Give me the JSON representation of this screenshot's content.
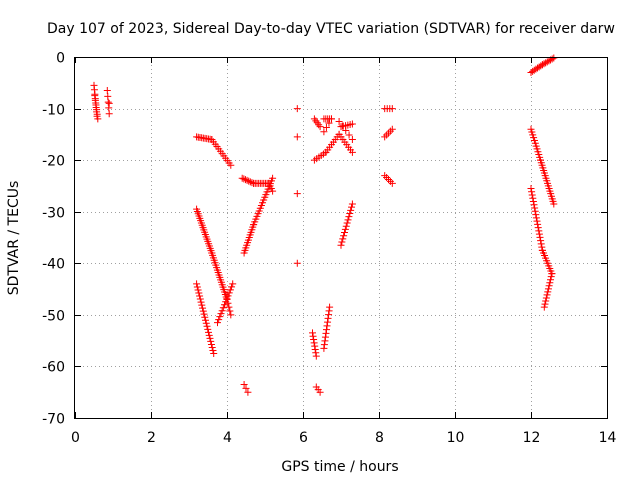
{
  "chart_data": {
    "type": "scatter",
    "title": "Day 107 of 2023, Sidereal Day-to-day VTEC variation (SDTVAR) for receiver darw",
    "xlabel": "GPS time / hours",
    "ylabel": "SDTVAR / TECUs",
    "xlim": [
      0,
      14
    ],
    "ylim": [
      -70,
      0
    ],
    "xticks": [
      0,
      2,
      4,
      6,
      8,
      10,
      12,
      14
    ],
    "yticks": [
      0,
      -10,
      -20,
      -30,
      -40,
      -50,
      -60,
      -70
    ],
    "grid": true,
    "marker": "+",
    "color": "#ff0000",
    "series": [
      {
        "name": "SDTVAR",
        "segments": [
          {
            "from": [
              0.5,
              -5.5
            ],
            "to": [
              0.58,
              -11.5
            ],
            "n": 8
          },
          {
            "from": [
              0.52,
              -7.5
            ],
            "to": [
              0.6,
              -12.0
            ],
            "n": 6
          },
          {
            "from": [
              0.85,
              -6.5
            ],
            "to": [
              0.9,
              -11.0
            ],
            "n": 5
          },
          {
            "from": [
              3.2,
              -15.5
            ],
            "to": [
              3.6,
              -16.0
            ],
            "n": 10
          },
          {
            "from": [
              3.6,
              -16.0
            ],
            "to": [
              4.1,
              -21.0
            ],
            "n": 12
          },
          {
            "from": [
              3.2,
              -29.5
            ],
            "to": [
              3.6,
              -38.0
            ],
            "n": 20
          },
          {
            "from": [
              3.6,
              -38.0
            ],
            "to": [
              4.0,
              -47.0
            ],
            "n": 20
          },
          {
            "from": [
              4.0,
              -47.0
            ],
            "to": [
              4.1,
              -50.0
            ],
            "n": 5
          },
          {
            "from": [
              3.2,
              -44.0
            ],
            "to": [
              3.65,
              -57.5
            ],
            "n": 24
          },
          {
            "from": [
              3.75,
              -51.5
            ],
            "to": [
              4.15,
              -44.0
            ],
            "n": 14
          },
          {
            "from": [
              4.4,
              -23.5
            ],
            "to": [
              4.7,
              -24.5
            ],
            "n": 8
          },
          {
            "from": [
              4.7,
              -24.5
            ],
            "to": [
              5.1,
              -24.5
            ],
            "n": 10
          },
          {
            "from": [
              5.1,
              -24.5
            ],
            "to": [
              5.2,
              -26.0
            ],
            "n": 4
          },
          {
            "from": [
              4.45,
              -38.0
            ],
            "to": [
              4.7,
              -32.5
            ],
            "n": 12
          },
          {
            "from": [
              4.7,
              -32.5
            ],
            "to": [
              5.2,
              -23.5
            ],
            "n": 18
          },
          {
            "from": [
              4.45,
              -63.5
            ],
            "to": [
              4.55,
              -65.0
            ],
            "n": 3
          },
          {
            "from": [
              6.3,
              -12.0
            ],
            "to": [
              6.45,
              -13.5
            ],
            "n": 5
          },
          {
            "from": [
              6.55,
              -12.0
            ],
            "to": [
              6.75,
              -12.0
            ],
            "n": 5
          },
          {
            "from": [
              6.75,
              -12.0
            ],
            "to": [
              6.55,
              -14.5
            ],
            "n": 4
          },
          {
            "from": [
              6.95,
              -12.5
            ],
            "to": [
              7.3,
              -16.0
            ],
            "n": 5
          },
          {
            "from": [
              7.0,
              -13.5
            ],
            "to": [
              7.3,
              -13.0
            ],
            "n": 6
          },
          {
            "from": [
              6.3,
              -20.0
            ],
            "to": [
              6.6,
              -18.5
            ],
            "n": 6
          },
          {
            "from": [
              6.6,
              -18.5
            ],
            "to": [
              6.95,
              -15.0
            ],
            "n": 8
          },
          {
            "from": [
              6.95,
              -15.0
            ],
            "to": [
              7.3,
              -18.5
            ],
            "n": 8
          },
          {
            "from": [
              6.25,
              -53.5
            ],
            "to": [
              6.35,
              -58.0
            ],
            "n": 8
          },
          {
            "from": [
              6.55,
              -56.5
            ],
            "to": [
              6.7,
              -48.5
            ],
            "n": 12
          },
          {
            "from": [
              6.35,
              -64.0
            ],
            "to": [
              6.45,
              -65.0
            ],
            "n": 3
          },
          {
            "from": [
              7.0,
              -36.5
            ],
            "to": [
              7.3,
              -28.5
            ],
            "n": 14
          },
          {
            "from": [
              8.15,
              -10.0
            ],
            "to": [
              8.35,
              -10.0
            ],
            "n": 4
          },
          {
            "from": [
              8.15,
              -15.5
            ],
            "to": [
              8.35,
              -14.0
            ],
            "n": 5
          },
          {
            "from": [
              8.15,
              -23.0
            ],
            "to": [
              8.35,
              -24.5
            ],
            "n": 5
          },
          {
            "from": [
              12.0,
              -3.0
            ],
            "to": [
              12.3,
              -1.5
            ],
            "n": 8
          },
          {
            "from": [
              12.3,
              -1.5
            ],
            "to": [
              12.6,
              -0.2
            ],
            "n": 8
          },
          {
            "from": [
              12.0,
              -14.0
            ],
            "to": [
              12.25,
              -20.0
            ],
            "n": 12
          },
          {
            "from": [
              12.25,
              -20.0
            ],
            "to": [
              12.6,
              -28.5
            ],
            "n": 18
          },
          {
            "from": [
              12.0,
              -25.5
            ],
            "to": [
              12.3,
              -37.5
            ],
            "n": 20
          },
          {
            "from": [
              12.3,
              -37.5
            ],
            "to": [
              12.55,
              -42.0
            ],
            "n": 10
          },
          {
            "from": [
              12.55,
              -42.0
            ],
            "to": [
              12.35,
              -48.5
            ],
            "n": 12
          }
        ],
        "points": [
          [
            5.85,
            -10.0
          ],
          [
            5.85,
            -15.5
          ],
          [
            5.85,
            -26.5
          ],
          [
            5.85,
            -40.0
          ],
          [
            0.9,
            -9.0
          ]
        ]
      }
    ]
  }
}
